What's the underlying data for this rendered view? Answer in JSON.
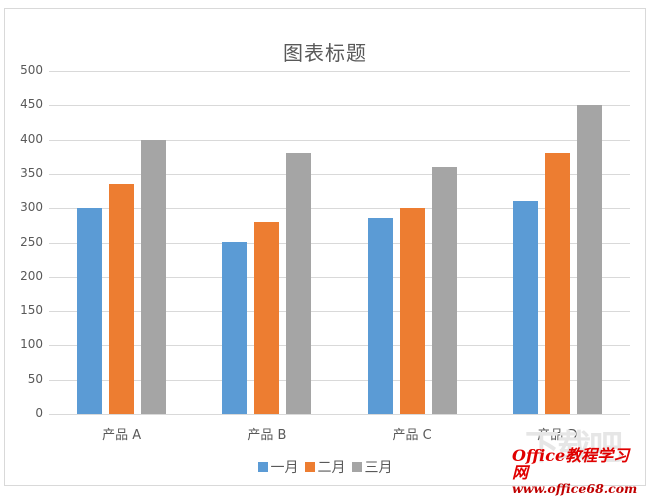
{
  "chart_data": {
    "type": "bar",
    "title": "图表标题",
    "xlabel": "",
    "ylabel": "",
    "categories": [
      "产品 A",
      "产品 B",
      "产品 C",
      "产品 D"
    ],
    "series": [
      {
        "name": "一月",
        "color": "#5b9bd5",
        "values": [
          300,
          250,
          285,
          310
        ]
      },
      {
        "name": "二月",
        "color": "#ed7d31",
        "values": [
          335,
          280,
          300,
          380
        ]
      },
      {
        "name": "三月",
        "color": "#a5a5a5",
        "values": [
          400,
          380,
          360,
          450
        ]
      }
    ],
    "ylim": [
      0,
      500
    ],
    "yticks": [
      "0",
      "50",
      "100",
      "150",
      "200",
      "250",
      "300",
      "350",
      "400",
      "450",
      "500"
    ],
    "grid": true,
    "legend_position": "bottom"
  },
  "watermark": {
    "line1": "Office教程学习网",
    "line2": "www.office68.com",
    "ghost": "下载吧"
  }
}
